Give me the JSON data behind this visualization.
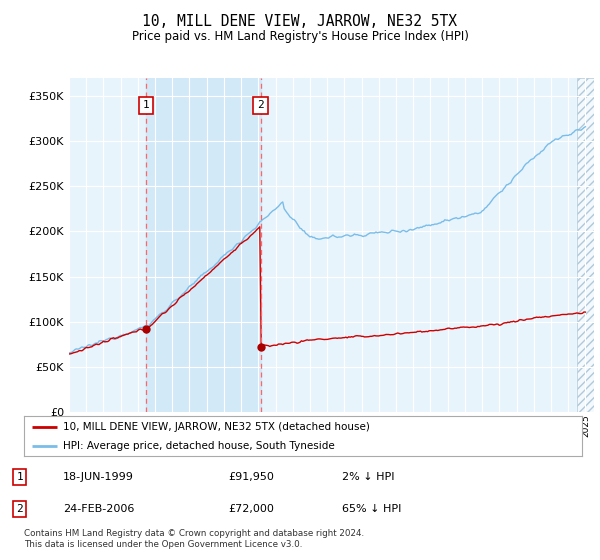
{
  "title": "10, MILL DENE VIEW, JARROW, NE32 5TX",
  "subtitle": "Price paid vs. HM Land Registry's House Price Index (HPI)",
  "legend_line1": "10, MILL DENE VIEW, JARROW, NE32 5TX (detached house)",
  "legend_line2": "HPI: Average price, detached house, South Tyneside",
  "transaction1_date": "18-JUN-1999",
  "transaction1_price": "£91,950",
  "transaction1_hpi": "2% ↓ HPI",
  "transaction1_date_num": 1999.46,
  "transaction1_value": 91950,
  "transaction2_date": "24-FEB-2006",
  "transaction2_price": "£72,000",
  "transaction2_hpi": "65% ↓ HPI",
  "transaction2_date_num": 2006.14,
  "transaction2_value": 72000,
  "hpi_color": "#7abde8",
  "price_color": "#cc0000",
  "vline_color": "#ff6666",
  "dot_color": "#aa0000",
  "shade_color": "#d0e8f8",
  "background_plot": "#e8f4fc",
  "background_fig": "#ffffff",
  "grid_color": "#ffffff",
  "ytick_labels": [
    "£0",
    "£50K",
    "£100K",
    "£150K",
    "£200K",
    "£250K",
    "£300K",
    "£350K"
  ],
  "ytick_values": [
    0,
    50000,
    100000,
    150000,
    200000,
    250000,
    300000,
    350000
  ],
  "ylim": [
    0,
    370000
  ],
  "xlim_start": 1995.0,
  "xlim_end": 2025.5,
  "footer": "Contains HM Land Registry data © Crown copyright and database right 2024.\nThis data is licensed under the Open Government Licence v3.0."
}
